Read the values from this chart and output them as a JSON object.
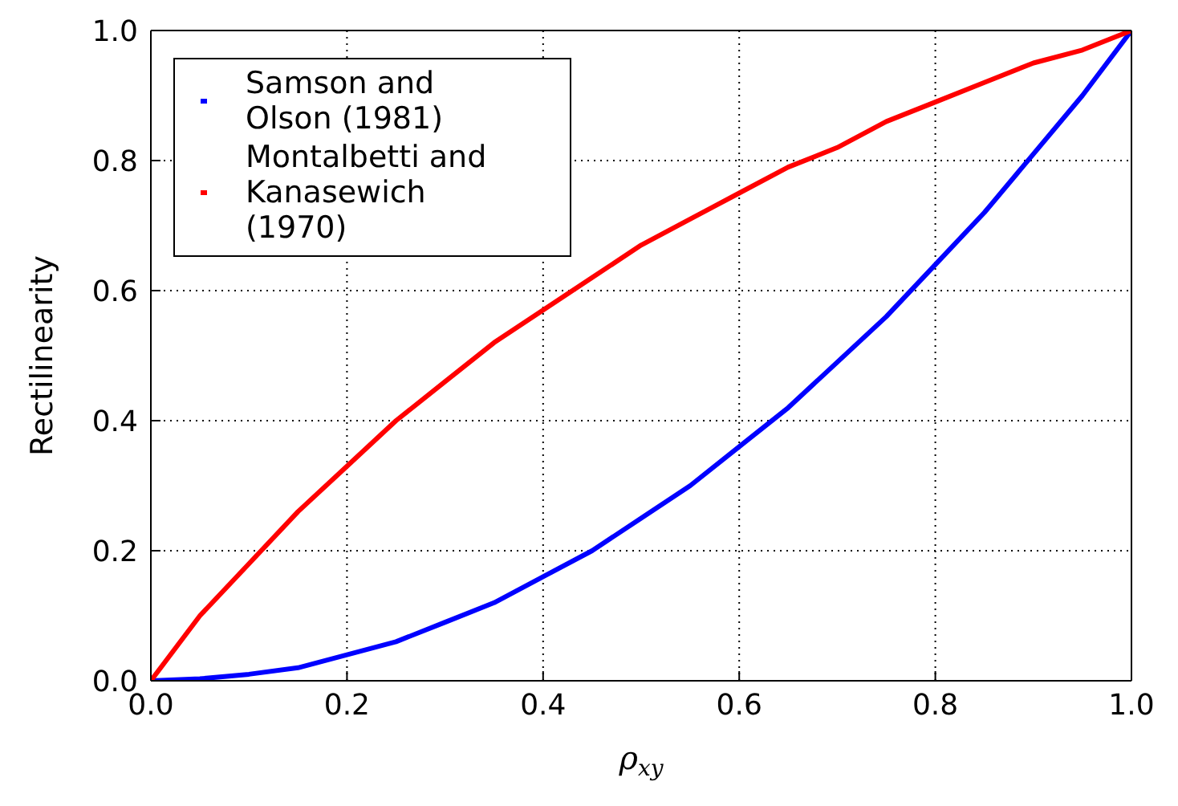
{
  "chart_data": {
    "type": "line",
    "xlabel": "ρ$_{xy}$",
    "ylabel": "Rectilinearity",
    "x": [
      0,
      0.05,
      0.1,
      0.15,
      0.2,
      0.25,
      0.3,
      0.35,
      0.4,
      0.45,
      0.5,
      0.55,
      0.6,
      0.65,
      0.7,
      0.75,
      0.8,
      0.85,
      0.9,
      0.95,
      1
    ],
    "series": [
      {
        "name": "Samson and Olson (1981)",
        "color": "#0000ff",
        "values": [
          0,
          0.003,
          0.01,
          0.02,
          0.04,
          0.06,
          0.09,
          0.12,
          0.16,
          0.2,
          0.25,
          0.3,
          0.36,
          0.42,
          0.49,
          0.56,
          0.64,
          0.72,
          0.81,
          0.9,
          1
        ]
      },
      {
        "name": "Montalbetti and Kanasewich (1970)",
        "color": "#ff0000",
        "values": [
          0,
          0.1,
          0.18,
          0.26,
          0.33,
          0.4,
          0.46,
          0.52,
          0.57,
          0.62,
          0.67,
          0.71,
          0.75,
          0.79,
          0.82,
          0.86,
          0.89,
          0.92,
          0.95,
          0.97,
          1
        ]
      }
    ],
    "xlim": [
      0,
      1
    ],
    "ylim": [
      0,
      1
    ],
    "xticks": [
      {
        "value": 0,
        "label": "0.0"
      },
      0.2,
      0.4,
      0.6,
      0.8,
      {
        "value": 1,
        "label": "1.0"
      }
    ],
    "yticks": [
      {
        "value": 0,
        "label": "0.0"
      },
      0.2,
      0.4,
      0.6,
      0.8,
      {
        "value": 1,
        "label": "1.0"
      }
    ],
    "grid": true,
    "legend": "top left",
    "line_style": "solid",
    "marker": "none"
  }
}
